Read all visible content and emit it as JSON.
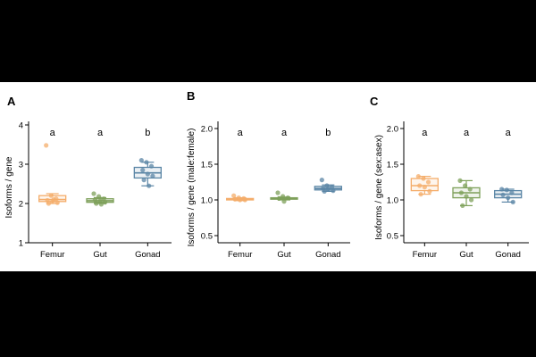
{
  "figure": {
    "background": "#ffffff",
    "letterbox_color": "#000000"
  },
  "chart_data": [
    {
      "panel_label": "A",
      "type": "box",
      "ylabel": "Isoforms / gene",
      "ylim": [
        1,
        4
      ],
      "yticks": [
        1,
        2,
        3,
        4
      ],
      "categories": [
        "Femur",
        "Gut",
        "Gonad"
      ],
      "colors": [
        "#f4ad6b",
        "#7ea05a",
        "#5b86a6"
      ],
      "significance": [
        "a",
        "a",
        "b"
      ],
      "boxes": [
        {
          "q1": 2.05,
          "median": 2.1,
          "q3": 2.2,
          "whisker_low": 2.0,
          "whisker_high": 2.25
        },
        {
          "q1": 2.03,
          "median": 2.07,
          "q3": 2.12,
          "whisker_low": 2.0,
          "whisker_high": 2.15
        },
        {
          "q1": 2.65,
          "median": 2.78,
          "q3": 2.92,
          "whisker_low": 2.45,
          "whisker_high": 3.05
        }
      ],
      "points": [
        [
          3.48,
          2.2,
          2.12,
          2.08,
          2.05,
          2.02,
          2.0,
          2.1
        ],
        [
          2.25,
          2.18,
          2.12,
          2.1,
          2.06,
          2.03,
          2.0,
          1.98
        ],
        [
          3.1,
          3.05,
          2.95,
          2.85,
          2.75,
          2.7,
          2.6,
          2.45
        ]
      ]
    },
    {
      "panel_label": "B",
      "type": "box",
      "ylabel": "Isoforms / gene (male:female)",
      "ylim": [
        0.4,
        2.05
      ],
      "yticks": [
        0.5,
        1.0,
        1.5,
        2.0
      ],
      "ytick_labels": [
        "0.5",
        "1.0",
        "1.5",
        "2.0"
      ],
      "categories": [
        "Femur",
        "Gut",
        "Gonad"
      ],
      "colors": [
        "#f4ad6b",
        "#7ea05a",
        "#5b86a6"
      ],
      "significance": [
        "a",
        "a",
        "b"
      ],
      "boxes": [
        {
          "q1": 1.0,
          "median": 1.01,
          "q3": 1.02,
          "whisker_low": 0.99,
          "whisker_high": 1.03
        },
        {
          "q1": 1.01,
          "median": 1.02,
          "q3": 1.03,
          "whisker_low": 1.0,
          "whisker_high": 1.04
        },
        {
          "q1": 1.14,
          "median": 1.16,
          "q3": 1.19,
          "whisker_low": 1.12,
          "whisker_high": 1.21
        }
      ],
      "points": [
        [
          1.06,
          1.03,
          1.02,
          1.01,
          1.0,
          1.0
        ],
        [
          1.1,
          1.05,
          1.03,
          1.02,
          0.98
        ],
        [
          1.28,
          1.2,
          1.18,
          1.16,
          1.15,
          1.13,
          1.12
        ]
      ]
    },
    {
      "panel_label": "C",
      "type": "box",
      "ylabel": "Isoforms / gene (sex:asex)",
      "ylim": [
        0.4,
        2.05
      ],
      "yticks": [
        0.5,
        1.0,
        1.5,
        2.0
      ],
      "ytick_labels": [
        "0.5",
        "1.0",
        "1.5",
        "2.0"
      ],
      "categories": [
        "Femur",
        "Gut",
        "Gonad"
      ],
      "colors": [
        "#f4ad6b",
        "#7ea05a",
        "#5b86a6"
      ],
      "significance": [
        "a",
        "a",
        "a"
      ],
      "boxes": [
        {
          "q1": 1.13,
          "median": 1.2,
          "q3": 1.3,
          "whisker_low": 1.08,
          "whisker_high": 1.33
        },
        {
          "q1": 1.03,
          "median": 1.1,
          "q3": 1.17,
          "whisker_low": 0.92,
          "whisker_high": 1.27
        },
        {
          "q1": 1.03,
          "median": 1.08,
          "q3": 1.13,
          "whisker_low": 0.97,
          "whisker_high": 1.15
        }
      ],
      "points": [
        [
          1.33,
          1.3,
          1.25,
          1.2,
          1.18,
          1.12,
          1.08
        ],
        [
          1.27,
          1.2,
          1.15,
          1.1,
          1.05,
          1.0,
          0.92
        ],
        [
          1.15,
          1.14,
          1.1,
          1.07,
          1.03,
          0.97
        ]
      ]
    }
  ]
}
